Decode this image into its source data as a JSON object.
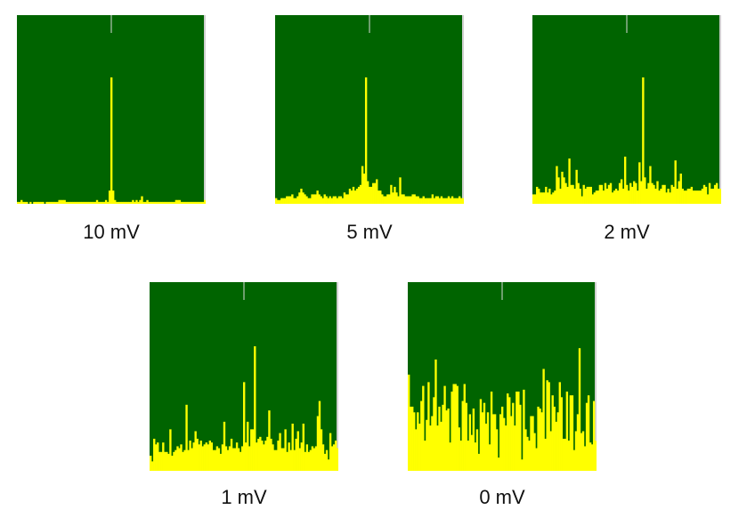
{
  "colors": {
    "plot_bg": "#006400",
    "bars": "#ffff00",
    "frame_edge": "#d0d0d0",
    "marker": "#d8d8d8"
  },
  "chart_data": [
    {
      "type": "bar",
      "caption": "10 mV",
      "ylim": [
        0,
        100
      ],
      "values": [
        1,
        1,
        2,
        1,
        1,
        1,
        0,
        1,
        0,
        1,
        1,
        1,
        1,
        1,
        1,
        0,
        1,
        1,
        1,
        1,
        1,
        1,
        1,
        2,
        2,
        2,
        2,
        1,
        1,
        1,
        1,
        1,
        1,
        1,
        1,
        1,
        1,
        1,
        1,
        1,
        1,
        1,
        1,
        1,
        2,
        1,
        1,
        1,
        1,
        2,
        1,
        7,
        67,
        7,
        2,
        1,
        1,
        1,
        1,
        1,
        1,
        1,
        1,
        1,
        2,
        1,
        2,
        1,
        2,
        4,
        1,
        1,
        2,
        1,
        1,
        1,
        1,
        1,
        1,
        1,
        1,
        1,
        1,
        1,
        1,
        1,
        1,
        1,
        2,
        2,
        2,
        1,
        1,
        1,
        1,
        1,
        1,
        1,
        1,
        1,
        1,
        1,
        1,
        1,
        2
      ]
    },
    {
      "type": "bar",
      "caption": "5 mV",
      "ylim": [
        0,
        100
      ],
      "values": [
        3,
        2,
        2,
        3,
        3,
        3,
        4,
        4,
        4,
        5,
        3,
        3,
        4,
        6,
        8,
        6,
        5,
        4,
        3,
        3,
        5,
        5,
        5,
        7,
        5,
        4,
        3,
        5,
        4,
        3,
        4,
        3,
        4,
        4,
        3,
        4,
        4,
        3,
        6,
        5,
        5,
        8,
        7,
        9,
        7,
        8,
        9,
        10,
        20,
        16,
        67,
        12,
        9,
        9,
        11,
        11,
        13,
        7,
        7,
        5,
        4,
        4,
        5,
        5,
        10,
        6,
        9,
        6,
        4,
        14,
        5,
        5,
        4,
        4,
        4,
        4,
        5,
        5,
        4,
        4,
        3,
        3,
        4,
        3,
        3,
        3,
        3,
        5,
        3,
        4,
        4,
        3,
        4,
        3,
        3,
        3,
        4,
        3,
        4,
        3,
        3,
        3,
        4,
        3,
        3
      ]
    },
    {
      "type": "bar",
      "caption": "2 mV",
      "ylim": [
        0,
        100
      ],
      "values": [
        5,
        5,
        9,
        8,
        6,
        6,
        6,
        9,
        6,
        8,
        5,
        6,
        7,
        20,
        14,
        8,
        17,
        14,
        11,
        9,
        24,
        10,
        10,
        8,
        18,
        11,
        8,
        4,
        10,
        8,
        9,
        9,
        9,
        5,
        6,
        7,
        7,
        10,
        10,
        7,
        11,
        8,
        10,
        11,
        6,
        7,
        8,
        7,
        11,
        13,
        8,
        25,
        10,
        7,
        11,
        9,
        12,
        11,
        7,
        22,
        12,
        67,
        14,
        8,
        11,
        20,
        11,
        10,
        8,
        12,
        7,
        8,
        10,
        10,
        6,
        8,
        6,
        10,
        9,
        23,
        8,
        12,
        16,
        8,
        7,
        7,
        8,
        8,
        9,
        7,
        7,
        7,
        7,
        7,
        8,
        10,
        9,
        5,
        11,
        8,
        8,
        10,
        11,
        8,
        8
      ]
    },
    {
      "type": "bar",
      "caption": "1 mV",
      "ylim": [
        0,
        100
      ],
      "values": [
        8,
        5,
        17,
        14,
        15,
        10,
        10,
        15,
        10,
        10,
        9,
        22,
        8,
        10,
        11,
        13,
        12,
        14,
        10,
        11,
        35,
        11,
        16,
        12,
        15,
        21,
        17,
        14,
        16,
        13,
        14,
        15,
        14,
        16,
        15,
        11,
        11,
        13,
        12,
        9,
        14,
        26,
        13,
        11,
        13,
        17,
        12,
        12,
        15,
        12,
        10,
        13,
        47,
        15,
        26,
        13,
        22,
        22,
        66,
        15,
        17,
        18,
        16,
        14,
        16,
        18,
        32,
        17,
        14,
        11,
        11,
        16,
        20,
        12,
        12,
        22,
        10,
        15,
        11,
        25,
        11,
        17,
        21,
        12,
        15,
        25,
        10,
        14,
        10,
        11,
        13,
        12,
        13,
        29,
        37,
        22,
        14,
        9,
        11,
        6,
        20,
        13,
        14,
        16,
        12
      ]
    },
    {
      "type": "bar",
      "caption": "0 mV",
      "ylim": [
        0,
        100
      ],
      "values": [
        51,
        34,
        34,
        31,
        22,
        31,
        25,
        37,
        45,
        16,
        27,
        47,
        24,
        29,
        39,
        59,
        24,
        34,
        26,
        35,
        45,
        32,
        33,
        15,
        42,
        46,
        46,
        45,
        23,
        16,
        37,
        46,
        36,
        16,
        30,
        19,
        33,
        15,
        22,
        9,
        38,
        31,
        36,
        25,
        31,
        14,
        42,
        30,
        30,
        22,
        7,
        30,
        34,
        28,
        24,
        41,
        39,
        29,
        36,
        24,
        42,
        42,
        35,
        6,
        43,
        22,
        18,
        16,
        29,
        29,
        20,
        12,
        34,
        33,
        31,
        54,
        17,
        48,
        47,
        21,
        40,
        34,
        26,
        31,
        47,
        39,
        17,
        17,
        42,
        16,
        40,
        40,
        11,
        21,
        30,
        65,
        20,
        21,
        13,
        36,
        40,
        15,
        14,
        37,
        16
      ]
    }
  ]
}
